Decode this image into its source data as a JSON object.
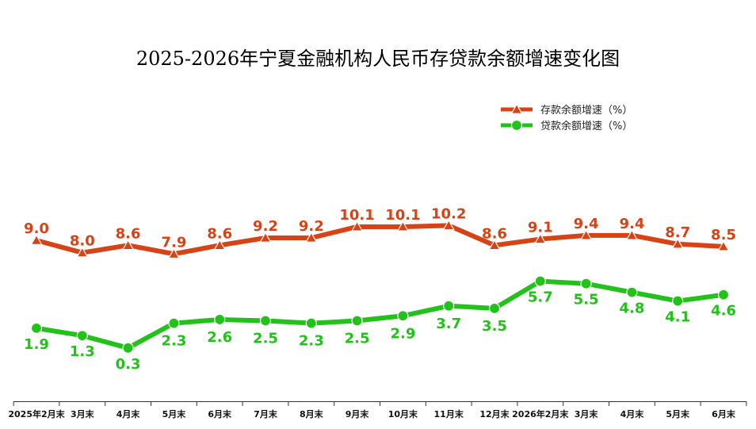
{
  "chart_data": {
    "type": "line",
    "title": "2025-2026年宁夏金融机构人民币存贷款余额增速变化图",
    "categories": [
      "2025年2月末",
      "3月末",
      "4月末",
      "5月末",
      "6月末",
      "7月末",
      "8月末",
      "9月末",
      "10月末",
      "11月末",
      "12月末",
      "2026年2月末",
      "3月末",
      "4月末",
      "5月末",
      "6月末"
    ],
    "series": [
      {
        "name": "存款余额增速（%）",
        "color": "#d84315",
        "marker": "triangle",
        "values": [
          9.0,
          8.0,
          8.6,
          7.9,
          8.6,
          9.2,
          9.2,
          10.1,
          10.1,
          10.2,
          8.6,
          9.1,
          9.4,
          9.4,
          8.7,
          8.5
        ],
        "labels": [
          "9.0",
          "8.0",
          "8.6",
          "7.9",
          "8.6",
          "9.2",
          "9.2",
          "10.1",
          "10.1",
          "10.2",
          "8.6",
          "9.1",
          "9.4",
          "9.4",
          "8.7",
          "8.5"
        ]
      },
      {
        "name": "贷款余额增速（%）",
        "color": "#22c21a",
        "marker": "circle",
        "values": [
          1.9,
          1.3,
          0.3,
          2.3,
          2.6,
          2.5,
          2.3,
          2.5,
          2.9,
          3.7,
          3.5,
          5.7,
          5.5,
          4.8,
          4.1,
          4.6
        ],
        "labels": [
          "1.9",
          "1.3",
          "0.3",
          "2.3",
          "2.6",
          "2.5",
          "2.3",
          "2.5",
          "2.9",
          "3.7",
          "3.5",
          "5.7",
          "5.5",
          "4.8",
          "4.1",
          "4.6"
        ]
      }
    ],
    "xlabel": "",
    "ylabel": "",
    "y_axis_visible": false,
    "grid": false,
    "legend_position": "top-right"
  }
}
